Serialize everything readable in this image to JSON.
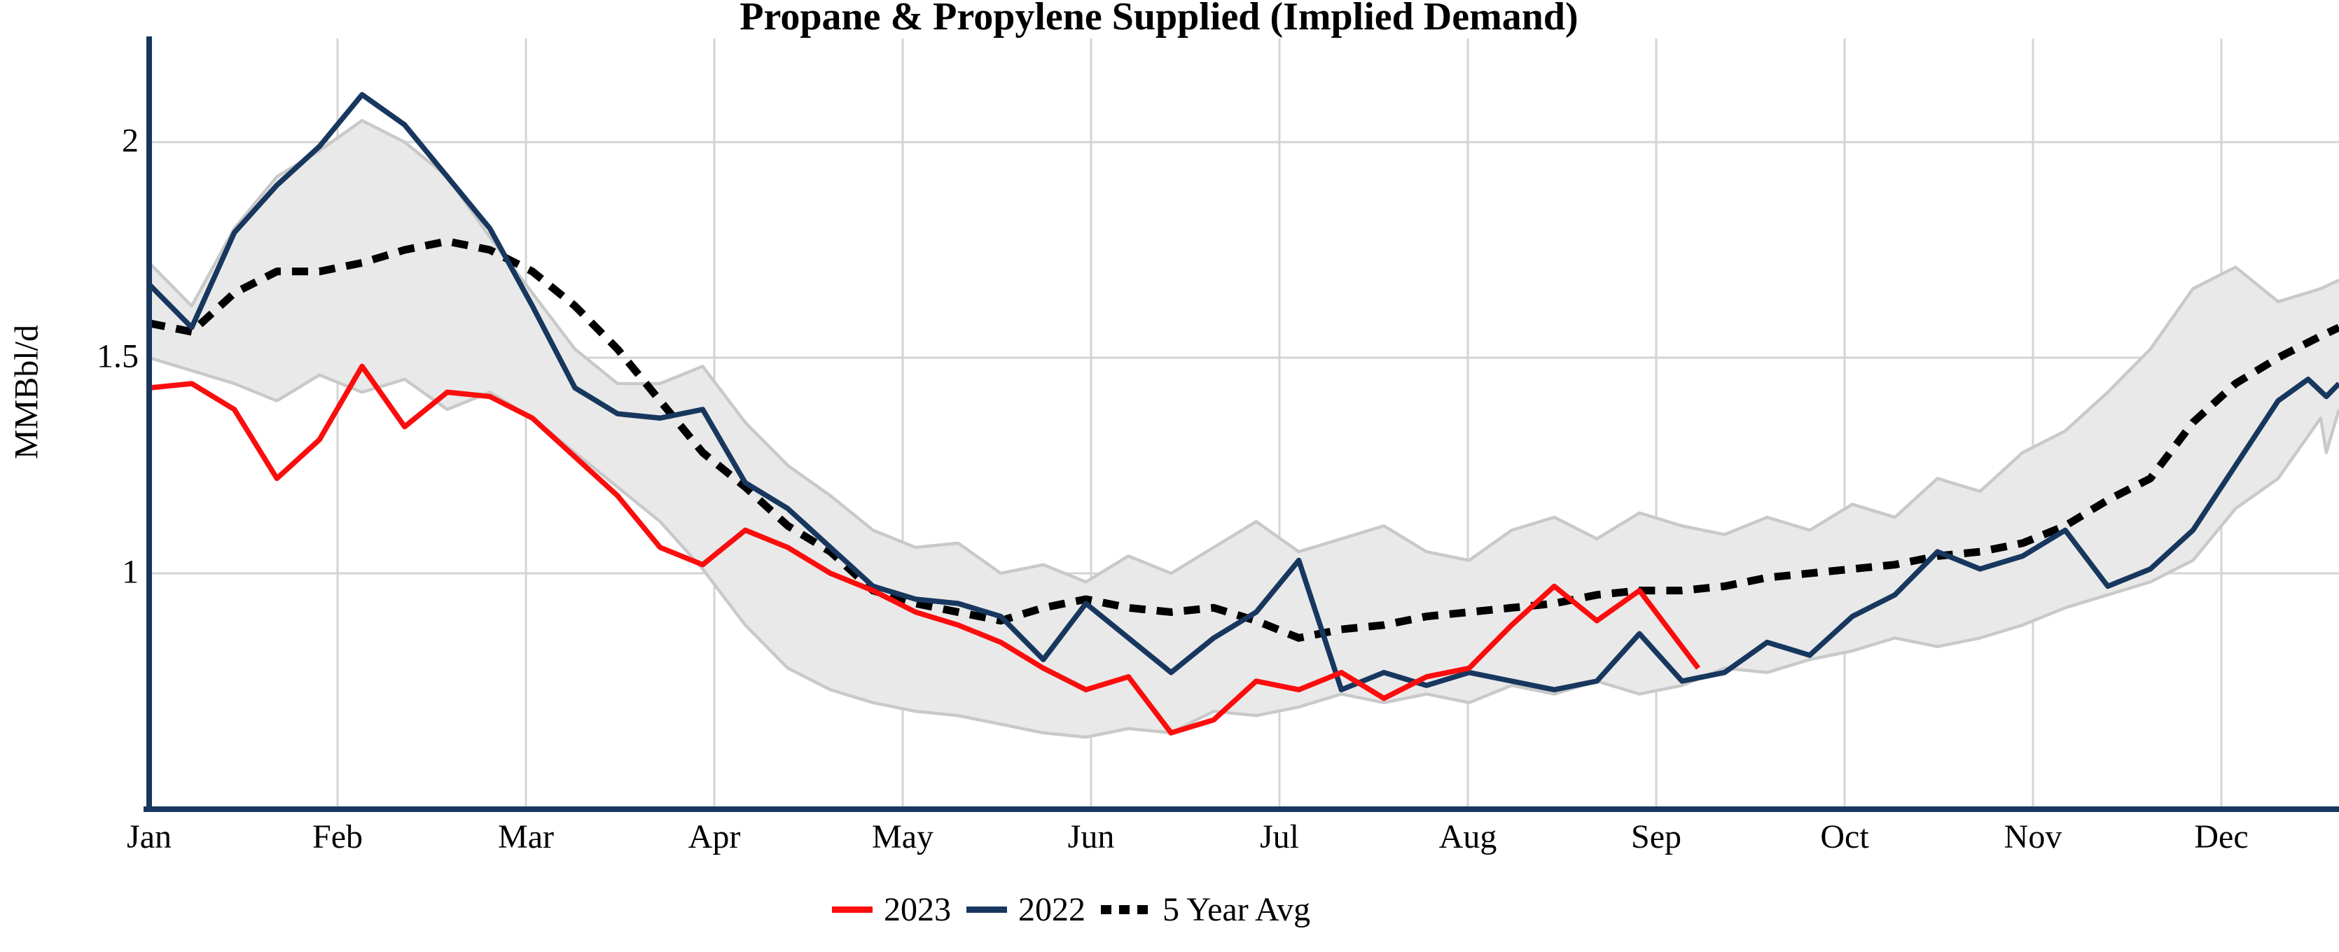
{
  "chart_data": {
    "type": "line",
    "title": "Propane & Propylene Supplied (Implied Demand)",
    "ylabel": "MMBbl/d",
    "x_tick_labels": [
      "Jan",
      "Feb",
      "Mar",
      "Apr",
      "May",
      "Jun",
      "Jul",
      "Aug",
      "Sep",
      "Oct",
      "Nov",
      "Dec"
    ],
    "y_ticks": [
      {
        "label": "2",
        "value": 2.0
      },
      {
        "label": "1.5",
        "value": 1.5
      },
      {
        "label": "1",
        "value": 1.0
      }
    ],
    "ylim": [
      0.45,
      2.24
    ],
    "grid": true,
    "legend_position": "bottom-center",
    "x_unit": "weekly points, Jan through Dec",
    "week_frac_step": 0.019444,
    "colors": {
      "red": "#FB0D0D",
      "navy": "#17375E",
      "black": "#000000",
      "band_fill": "#E9E9E9",
      "band_edge": "#C9C9C9",
      "gridline": "#D4D4D4",
      "axis": "#17375E"
    },
    "series": [
      {
        "name": "2023",
        "color_key": "red",
        "style": "solid",
        "values": [
          1.43,
          1.44,
          1.38,
          1.22,
          1.31,
          1.48,
          1.34,
          1.42,
          1.41,
          1.36,
          1.27,
          1.18,
          1.06,
          1.02,
          1.1,
          1.06,
          1.0,
          0.96,
          0.91,
          0.88,
          0.84,
          0.78,
          0.73,
          0.76,
          0.63,
          0.66,
          0.75,
          0.73,
          0.77,
          0.71,
          0.76,
          0.78,
          0.88,
          0.97,
          0.89,
          0.96
        ],
        "extra_points": [
          [
            0.7074,
            0.78
          ]
        ]
      },
      {
        "name": "2022",
        "color_key": "navy",
        "style": "solid",
        "values": [
          1.67,
          1.57,
          1.79,
          1.9,
          1.99,
          2.11,
          2.04,
          1.92,
          1.8,
          1.62,
          1.43,
          1.37,
          1.36,
          1.38,
          1.21,
          1.15,
          1.06,
          0.97,
          0.94,
          0.93,
          0.9,
          0.8,
          0.93,
          0.85,
          0.77,
          0.85,
          0.91,
          1.03,
          0.73,
          0.77,
          0.74,
          0.77,
          0.75,
          0.73,
          0.75,
          0.86,
          0.75,
          0.77,
          0.84,
          0.81,
          0.9,
          0.95,
          1.05,
          1.01,
          1.04,
          1.1,
          0.97,
          1.01,
          1.1,
          1.25,
          1.4
        ],
        "extra_points": [
          [
            0.9859,
            1.45
          ],
          [
            0.9942,
            1.41
          ],
          [
            1.0,
            1.44
          ]
        ]
      },
      {
        "name": "5 Year Avg",
        "color_key": "black",
        "style": "dashed",
        "values": [
          1.58,
          1.56,
          1.65,
          1.7,
          1.7,
          1.72,
          1.75,
          1.77,
          1.75,
          1.7,
          1.62,
          1.52,
          1.4,
          1.28,
          1.2,
          1.11,
          1.05,
          0.96,
          0.93,
          0.91,
          0.89,
          0.92,
          0.94,
          0.92,
          0.91,
          0.92,
          0.89,
          0.85,
          0.87,
          0.88,
          0.9,
          0.91,
          0.92,
          0.93,
          0.95,
          0.96,
          0.96,
          0.97,
          0.99,
          1.0,
          1.01,
          1.02,
          1.04,
          1.05,
          1.07,
          1.11,
          1.17,
          1.22,
          1.35,
          1.44,
          1.5,
          1.55
        ],
        "extra_points": [
          [
            1.0,
            1.57
          ]
        ]
      }
    ],
    "band": {
      "name": "5-year range",
      "top": [
        1.72,
        1.62,
        1.8,
        1.92,
        1.98,
        2.05,
        2.0,
        1.92,
        1.78,
        1.65,
        1.52,
        1.44,
        1.44,
        1.48,
        1.35,
        1.25,
        1.18,
        1.1,
        1.06,
        1.07,
        1.0,
        1.02,
        0.98,
        1.04,
        1.0,
        1.06,
        1.12,
        1.05,
        1.08,
        1.11,
        1.05,
        1.03,
        1.1,
        1.13,
        1.08,
        1.14,
        1.11,
        1.09,
        1.13,
        1.1,
        1.16,
        1.13,
        1.22,
        1.19,
        1.28,
        1.33,
        1.42,
        1.52,
        1.66,
        1.71,
        1.63,
        1.66
      ],
      "top_extra": [
        [
          1.0,
          1.68
        ]
      ],
      "bottom": [
        1.5,
        1.47,
        1.44,
        1.4,
        1.46,
        1.42,
        1.45,
        1.38,
        1.42,
        1.36,
        1.28,
        1.2,
        1.12,
        1.01,
        0.88,
        0.78,
        0.73,
        0.7,
        0.68,
        0.67,
        0.65,
        0.63,
        0.62,
        0.64,
        0.63,
        0.68,
        0.67,
        0.69,
        0.72,
        0.7,
        0.72,
        0.7,
        0.74,
        0.72,
        0.75,
        0.72,
        0.74,
        0.78,
        0.77,
        0.8,
        0.82,
        0.85,
        0.83,
        0.85,
        0.88,
        0.92,
        0.95,
        0.98,
        1.03,
        1.15,
        1.22,
        1.36
      ],
      "bottom_extra": [
        [
          0.9942,
          1.28
        ],
        [
          1.0,
          1.38
        ]
      ]
    },
    "legend": [
      {
        "label": "2023",
        "color_key": "red",
        "style": "solid"
      },
      {
        "label": "2022",
        "color_key": "navy",
        "style": "solid"
      },
      {
        "label": "5 Year Avg",
        "color_key": "black",
        "style": "dashed"
      }
    ]
  }
}
